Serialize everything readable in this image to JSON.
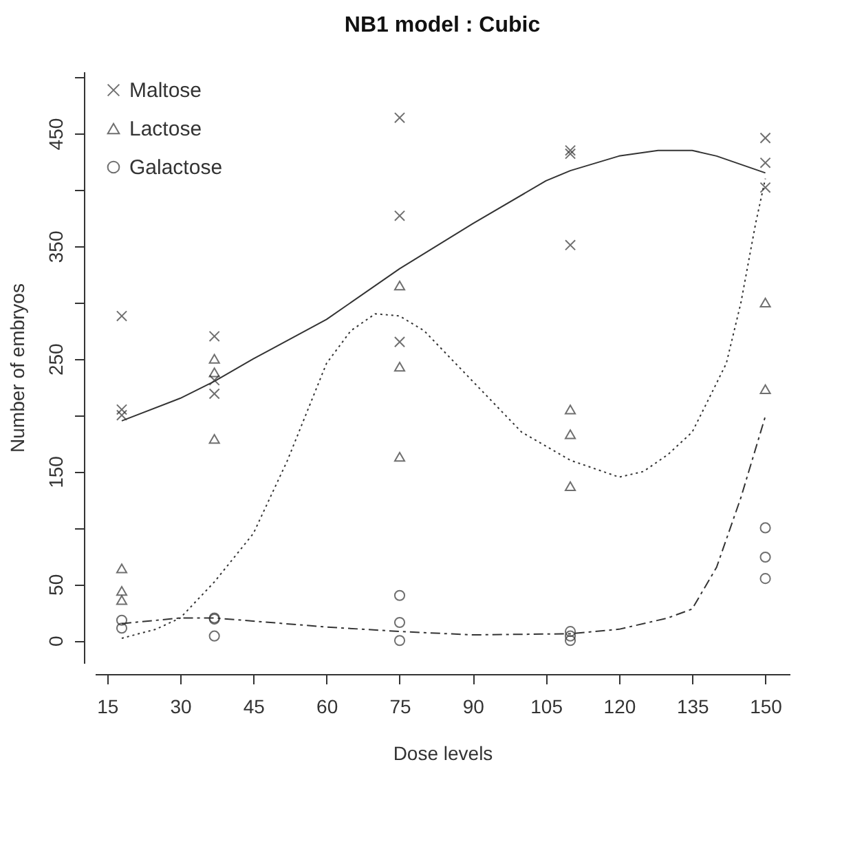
{
  "chart_data": {
    "type": "scatter",
    "title": "NB1 model : Cubic",
    "xlabel": "Dose levels",
    "ylabel": "Number of embryos",
    "xlim": [
      12.5,
      155
    ],
    "xticks": [
      15,
      30,
      45,
      60,
      75,
      90,
      105,
      120,
      135,
      150
    ],
    "ylim": [
      -20,
      505
    ],
    "yticks": [
      0,
      50,
      {
        "value": 100,
        "label": null
      },
      150,
      {
        "value": 200,
        "label": null
      },
      250,
      {
        "value": 300,
        "label": null
      },
      350,
      {
        "value": 400,
        "label": null
      },
      450,
      {
        "value": 500,
        "label": null
      }
    ],
    "grid": false,
    "legend": "top left",
    "series": [
      {
        "name": "Maltose",
        "marker": "cross",
        "color": "#333333",
        "x": [
          18,
          18,
          18,
          37,
          37,
          37,
          75,
          75,
          75,
          110,
          110,
          110,
          150,
          150,
          150
        ],
        "values": [
          288,
          205,
          200,
          270,
          231,
          219,
          464,
          377,
          265,
          435,
          432,
          351,
          446,
          424,
          402
        ]
      },
      {
        "name": "Lactose",
        "marker": "triangle",
        "color": "#333333",
        "x": [
          18,
          18,
          18,
          37,
          37,
          37,
          75,
          75,
          75,
          110,
          110,
          110,
          150,
          150
        ],
        "values": [
          64,
          44,
          36,
          250,
          238,
          179,
          315,
          243,
          163,
          205,
          183,
          137,
          300,
          223
        ]
      },
      {
        "name": "Galactose",
        "marker": "circle",
        "color": "#333333",
        "x": [
          18,
          18,
          37,
          37,
          37,
          75,
          75,
          75,
          110,
          110,
          110,
          150,
          150,
          150
        ],
        "values": [
          18,
          11,
          20,
          19,
          4,
          40,
          16,
          0,
          8,
          4,
          0,
          100,
          74,
          55
        ]
      },
      {
        "type": "line",
        "line_style": "solid",
        "color": "#333333",
        "x": [
          18,
          30,
          37,
          45,
          60,
          75,
          90,
          105,
          110,
          120,
          128,
          135,
          140,
          150
        ],
        "values": [
          195,
          215,
          230,
          250,
          285,
          330,
          370,
          408,
          417,
          430,
          435,
          435,
          430,
          415
        ]
      },
      {
        "type": "line",
        "line_style": "dotted",
        "color": "#333333",
        "x": [
          18,
          25,
          30,
          37,
          45,
          52,
          60,
          65,
          70,
          75,
          80,
          90,
          100,
          110,
          120,
          125,
          130,
          135,
          138,
          142,
          145,
          148,
          150
        ],
        "values": [
          2,
          10,
          20,
          52,
          95,
          160,
          246,
          275,
          290,
          288,
          275,
          230,
          185,
          160,
          145,
          150,
          165,
          185,
          211,
          246,
          300,
          370,
          410
        ]
      },
      {
        "type": "line",
        "line_style": "dashed",
        "color": "#333333",
        "x": [
          18,
          30,
          37,
          60,
          75,
          90,
          110,
          120,
          130,
          135,
          140,
          145,
          150
        ],
        "values": [
          15,
          20,
          20,
          12,
          8,
          5,
          6,
          10,
          20,
          28,
          65,
          127,
          199
        ]
      }
    ]
  }
}
